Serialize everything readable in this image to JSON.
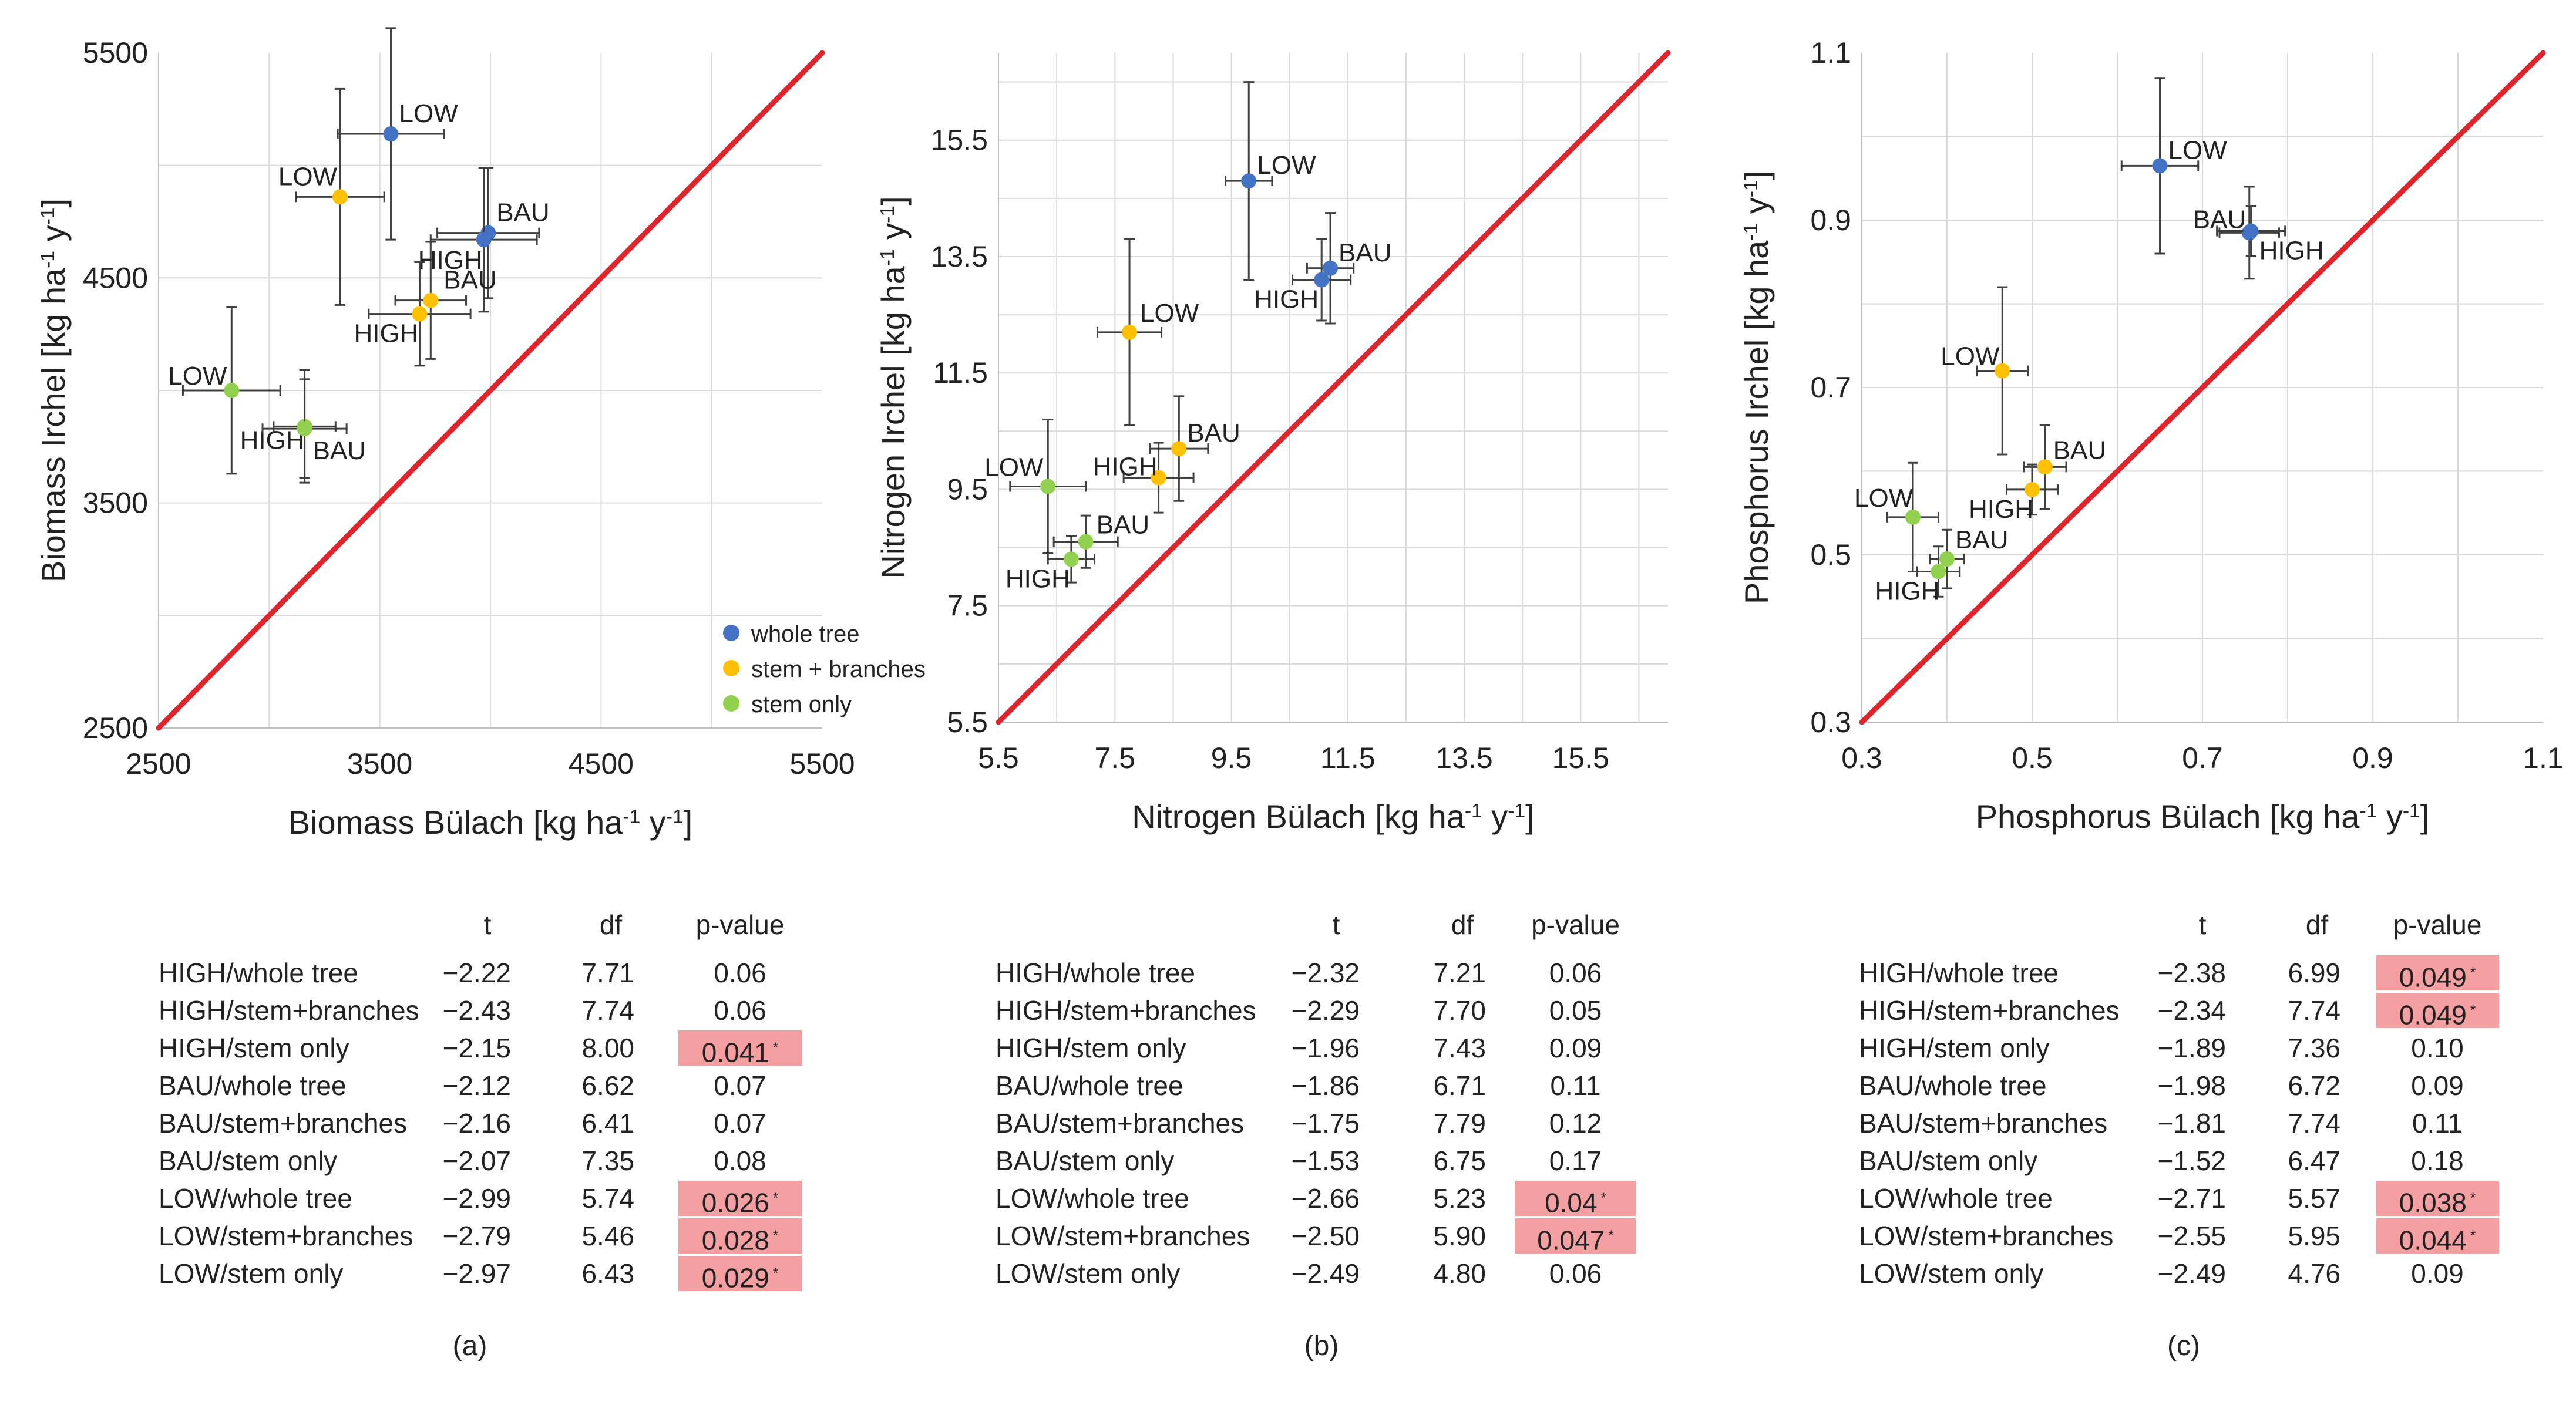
{
  "legend": {
    "placement": "bottom-right of panel (a)",
    "entries": [
      {
        "label": "whole tree",
        "color": "#4472c4"
      },
      {
        "label": "stem + branches",
        "color": "#ffc000"
      },
      {
        "label": "stem only",
        "color": "#92d050"
      }
    ]
  },
  "colors": {
    "whole tree": "#4472c4",
    "stem + branches": "#ffc000",
    "stem only": "#92d050",
    "one_to_one_line": "#e0242b",
    "significant_highlight": "#f4a0a3",
    "grid": "#d9d9d9"
  },
  "chart_data": [
    {
      "type": "scatter",
      "panel": "(a)",
      "xlabel": "Biomass Bülach [kg ha⁻¹ y⁻¹]",
      "ylabel": "Biomass Irchel [kg ha⁻¹ y⁻¹]",
      "xlim": [
        2500,
        5500
      ],
      "ylim": [
        2500,
        5500
      ],
      "xticks": [
        2500,
        3500,
        4500,
        5500
      ],
      "yticks": [
        2500,
        3500,
        4500,
        5500
      ],
      "xtick_labels": [
        "2500",
        "3500",
        "4500",
        "5500"
      ],
      "ytick_labels": [
        "2500",
        "3500",
        "4500",
        "5500"
      ],
      "grid": true,
      "grid_step": 500,
      "one_to_one_line": true,
      "points": [
        {
          "series": "whole tree",
          "label": "LOW",
          "x": 3550,
          "y": 5140,
          "xerr": 240,
          "yerr": 470
        },
        {
          "series": "whole tree",
          "label": "BAU",
          "x": 3990,
          "y": 4700,
          "xerr": 230,
          "yerr": 290
        },
        {
          "series": "whole tree",
          "label": "HIGH",
          "x": 3970,
          "y": 4670,
          "xerr": 240,
          "yerr": 320
        },
        {
          "series": "stem + branches",
          "label": "LOW",
          "x": 3320,
          "y": 4860,
          "xerr": 200,
          "yerr": 480
        },
        {
          "series": "stem + branches",
          "label": "BAU",
          "x": 3730,
          "y": 4400,
          "xerr": 160,
          "yerr": 260
        },
        {
          "series": "stem + branches",
          "label": "HIGH",
          "x": 3680,
          "y": 4340,
          "xerr": 230,
          "yerr": 230
        },
        {
          "series": "stem only",
          "label": "LOW",
          "x": 2830,
          "y": 4000,
          "xerr": 220,
          "yerr": 370
        },
        {
          "series": "stem only",
          "label": "HIGH",
          "x": 3160,
          "y": 3840,
          "xerr": 140,
          "yerr": 250
        },
        {
          "series": "stem only",
          "label": "BAU",
          "x": 3160,
          "y": 3830,
          "xerr": 190,
          "yerr": 220
        }
      ]
    },
    {
      "type": "scatter",
      "panel": "(b)",
      "xlabel": "Nitrogen Bülach [kg ha⁻¹ y⁻¹]",
      "ylabel": "Nitrogen Irchel [kg ha⁻¹ y⁻¹]",
      "xlim": [
        5.5,
        17
      ],
      "ylim": [
        5.5,
        17
      ],
      "xticks": [
        5.5,
        7.5,
        9.5,
        11.5,
        13.5,
        15.5
      ],
      "yticks": [
        5.5,
        7.5,
        9.5,
        11.5,
        13.5,
        15.5
      ],
      "xtick_labels": [
        "5.5",
        "7.5",
        "9.5",
        "11.5",
        "13.5",
        "15.5"
      ],
      "ytick_labels": [
        "5.5",
        "7.5",
        "9.5",
        "11.5",
        "13.5",
        "15.5"
      ],
      "grid": true,
      "grid_step": 1,
      "one_to_one_line": true,
      "points": [
        {
          "series": "whole tree",
          "label": "LOW",
          "x": 9.8,
          "y": 14.8,
          "xerr": 0.4,
          "yerr": 1.7
        },
        {
          "series": "whole tree",
          "label": "BAU",
          "x": 11.2,
          "y": 13.3,
          "xerr": 0.4,
          "yerr": 0.95
        },
        {
          "series": "whole tree",
          "label": "HIGH",
          "x": 11.05,
          "y": 13.1,
          "xerr": 0.5,
          "yerr": 0.7
        },
        {
          "series": "stem + branches",
          "label": "LOW",
          "x": 7.75,
          "y": 12.2,
          "xerr": 0.55,
          "yerr": 1.6
        },
        {
          "series": "stem + branches",
          "label": "BAU",
          "x": 8.6,
          "y": 10.2,
          "xerr": 0.5,
          "yerr": 0.9
        },
        {
          "series": "stem + branches",
          "label": "HIGH",
          "x": 8.25,
          "y": 9.7,
          "xerr": 0.6,
          "yerr": 0.6
        },
        {
          "series": "stem only",
          "label": "LOW",
          "x": 6.35,
          "y": 9.55,
          "xerr": 0.65,
          "yerr": 1.15
        },
        {
          "series": "stem only",
          "label": "BAU",
          "x": 7.0,
          "y": 8.6,
          "xerr": 0.55,
          "yerr": 0.45
        },
        {
          "series": "stem only",
          "label": "HIGH",
          "x": 6.75,
          "y": 8.3,
          "xerr": 0.4,
          "yerr": 0.4
        }
      ]
    },
    {
      "type": "scatter",
      "panel": "(c)",
      "xlabel": "Phosphorus Bülach [kg ha⁻¹ y⁻¹]",
      "ylabel": "Phosphorus Irchel [kg ha⁻¹ y⁻¹]",
      "xlim": [
        0.3,
        1.1
      ],
      "ylim": [
        0.3,
        1.1
      ],
      "xticks": [
        0.3,
        0.5,
        0.7,
        0.9,
        1.1
      ],
      "yticks": [
        0.3,
        0.5,
        0.7,
        0.9,
        1.1
      ],
      "xtick_labels": [
        "0.3",
        "0.5",
        "0.7",
        "0.9",
        "1.1"
      ],
      "ytick_labels": [
        "0.3",
        "0.5",
        "0.7",
        "0.9",
        "1.1"
      ],
      "grid": true,
      "grid_step": 0.1,
      "one_to_one_line": true,
      "points": [
        {
          "series": "whole tree",
          "label": "LOW",
          "x": 0.65,
          "y": 0.965,
          "xerr": 0.045,
          "yerr": 0.105
        },
        {
          "series": "whole tree",
          "label": "BAU",
          "x": 0.755,
          "y": 0.885,
          "xerr": 0.035,
          "yerr": 0.055
        },
        {
          "series": "whole tree",
          "label": "HIGH",
          "x": 0.757,
          "y": 0.887,
          "xerr": 0.04,
          "yerr": 0.03
        },
        {
          "series": "stem + branches",
          "label": "LOW",
          "x": 0.465,
          "y": 0.72,
          "xerr": 0.03,
          "yerr": 0.1
        },
        {
          "series": "stem + branches",
          "label": "BAU",
          "x": 0.515,
          "y": 0.605,
          "xerr": 0.025,
          "yerr": 0.05
        },
        {
          "series": "stem + branches",
          "label": "HIGH",
          "x": 0.5,
          "y": 0.578,
          "xerr": 0.03,
          "yerr": 0.03
        },
        {
          "series": "stem only",
          "label": "LOW",
          "x": 0.36,
          "y": 0.545,
          "xerr": 0.03,
          "yerr": 0.065
        },
        {
          "series": "stem only",
          "label": "BAU",
          "x": 0.4,
          "y": 0.495,
          "xerr": 0.02,
          "yerr": 0.035
        },
        {
          "series": "stem only",
          "label": "HIGH",
          "x": 0.39,
          "y": 0.48,
          "xerr": 0.025,
          "yerr": 0.03
        }
      ]
    }
  ],
  "tables": [
    {
      "caption": "(a)",
      "headers": [
        "t",
        "df",
        "p-value"
      ],
      "rows": [
        {
          "label": "HIGH/whole tree",
          "t": "−2.22",
          "df": "7.71",
          "p": "0.06",
          "sig": false
        },
        {
          "label": "HIGH/stem+branches",
          "t": "−2.43",
          "df": "7.74",
          "p": "0.06",
          "sig": false
        },
        {
          "label": "HIGH/stem only",
          "t": "−2.15",
          "df": "8.00",
          "p": "0.041",
          "sig": true
        },
        {
          "label": "BAU/whole tree",
          "t": "−2.12",
          "df": "6.62",
          "p": "0.07",
          "sig": false
        },
        {
          "label": "BAU/stem+branches",
          "t": "−2.16",
          "df": "6.41",
          "p": "0.07",
          "sig": false
        },
        {
          "label": "BAU/stem only",
          "t": "−2.07",
          "df": "7.35",
          "p": "0.08",
          "sig": false
        },
        {
          "label": "LOW/whole tree",
          "t": "−2.99",
          "df": "5.74",
          "p": "0.026",
          "sig": true
        },
        {
          "label": "LOW/stem+branches",
          "t": "−2.79",
          "df": "5.46",
          "p": "0.028",
          "sig": true
        },
        {
          "label": "LOW/stem only",
          "t": "−2.97",
          "df": "6.43",
          "p": "0.029",
          "sig": true
        }
      ]
    },
    {
      "caption": "(b)",
      "headers": [
        "t",
        "df",
        "p-value"
      ],
      "rows": [
        {
          "label": "HIGH/whole tree",
          "t": "−2.32",
          "df": "7.21",
          "p": "0.06",
          "sig": false
        },
        {
          "label": "HIGH/stem+branches",
          "t": "−2.29",
          "df": "7.70",
          "p": "0.05",
          "sig": false
        },
        {
          "label": "HIGH/stem only",
          "t": "−1.96",
          "df": "7.43",
          "p": "0.09",
          "sig": false
        },
        {
          "label": "BAU/whole tree",
          "t": "−1.86",
          "df": "6.71",
          "p": "0.11",
          "sig": false
        },
        {
          "label": "BAU/stem+branches",
          "t": "−1.75",
          "df": "7.79",
          "p": "0.12",
          "sig": false
        },
        {
          "label": "BAU/stem only",
          "t": "−1.53",
          "df": "6.75",
          "p": "0.17",
          "sig": false
        },
        {
          "label": "LOW/whole tree",
          "t": "−2.66",
          "df": "5.23",
          "p": "0.04",
          "sig": true
        },
        {
          "label": "LOW/stem+branches",
          "t": "−2.50",
          "df": "5.90",
          "p": "0.047",
          "sig": true
        },
        {
          "label": "LOW/stem only",
          "t": "−2.49",
          "df": "4.80",
          "p": "0.06",
          "sig": false
        }
      ]
    },
    {
      "caption": "(c)",
      "headers": [
        "t",
        "df",
        "p-value"
      ],
      "rows": [
        {
          "label": "HIGH/whole tree",
          "t": "−2.38",
          "df": "6.99",
          "p": "0.049",
          "sig": true
        },
        {
          "label": "HIGH/stem+branches",
          "t": "−2.34",
          "df": "7.74",
          "p": "0.049",
          "sig": true
        },
        {
          "label": "HIGH/stem only",
          "t": "−1.89",
          "df": "7.36",
          "p": "0.10",
          "sig": false
        },
        {
          "label": "BAU/whole tree",
          "t": "−1.98",
          "df": "6.72",
          "p": "0.09",
          "sig": false
        },
        {
          "label": "BAU/stem+branches",
          "t": "−1.81",
          "df": "7.74",
          "p": "0.11",
          "sig": false
        },
        {
          "label": "BAU/stem only",
          "t": "−1.52",
          "df": "6.47",
          "p": "0.18",
          "sig": false
        },
        {
          "label": "LOW/whole tree",
          "t": "−2.71",
          "df": "5.57",
          "p": "0.038",
          "sig": true
        },
        {
          "label": "LOW/stem+branches",
          "t": "−2.55",
          "df": "5.95",
          "p": "0.044",
          "sig": true
        },
        {
          "label": "LOW/stem only",
          "t": "−2.49",
          "df": "4.76",
          "p": "0.09",
          "sig": false
        }
      ]
    }
  ],
  "significance_marker": "*"
}
